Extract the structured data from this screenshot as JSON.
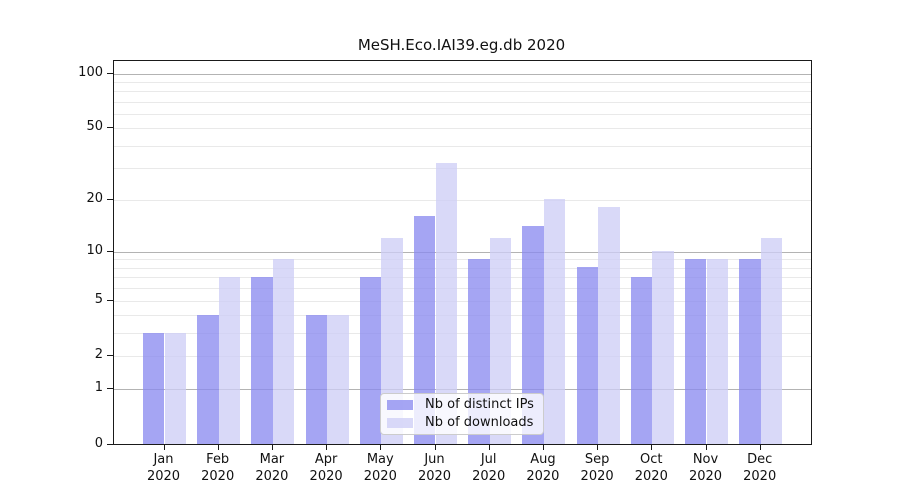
{
  "chart_data": {
    "type": "bar",
    "title": "MeSH.Eco.IAI39.eg.db 2020",
    "months": [
      "Jan",
      "Feb",
      "Mar",
      "Apr",
      "May",
      "Jun",
      "Jul",
      "Aug",
      "Sep",
      "Oct",
      "Nov",
      "Dec"
    ],
    "year": "2020",
    "series": [
      {
        "name": "Nb of distinct IPs",
        "values": [
          3,
          4,
          7,
          4,
          7,
          16,
          9,
          14,
          8,
          7,
          9,
          9
        ],
        "color": "rgba(138,138,239,0.77)",
        "solid_hex": "#a4a4f1"
      },
      {
        "name": "Nb of downloads",
        "values": [
          3,
          7,
          9,
          4,
          12,
          32,
          12,
          20,
          18,
          10,
          9,
          12
        ],
        "color": "rgba(205,205,246,0.77)",
        "solid_hex": "#d9d9f8"
      }
    ],
    "xlabel": "",
    "ylabel": "",
    "yscale": "log(1+x)",
    "ylim": [
      0,
      117
    ],
    "yticks": [
      0,
      1,
      2,
      5,
      10,
      20,
      50,
      100
    ],
    "major_grid_values": [
      1,
      10,
      100
    ],
    "minor_grid_values": [
      2,
      3,
      4,
      5,
      6,
      7,
      8,
      9,
      20,
      30,
      40,
      50,
      60,
      70,
      80,
      90
    ],
    "grid": true,
    "legend_position": "lower center",
    "colors": {
      "major_grid": "#b3b3b3",
      "minor_grid": "#e9e9e9",
      "axis": "#1a1a1a",
      "background": "#ffffff"
    }
  }
}
